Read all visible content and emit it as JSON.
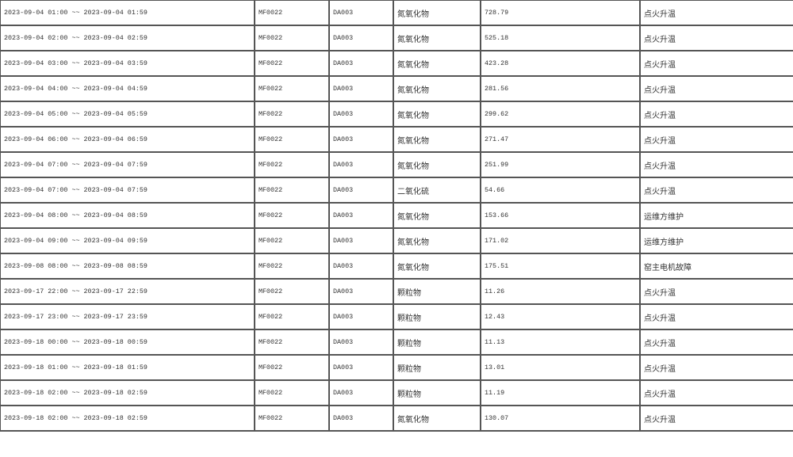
{
  "rows": [
    {
      "period": "2023-09-04 01:00 ~~ 2023-09-04 01:59",
      "company": "MF0022",
      "outlet": "DA003",
      "pollutant": "氮氧化物",
      "value": "728.79",
      "reason": "点火升温"
    },
    {
      "period": "2023-09-04 02:00 ~~ 2023-09-04 02:59",
      "company": "MF0022",
      "outlet": "DA003",
      "pollutant": "氮氧化物",
      "value": "525.18",
      "reason": "点火升温"
    },
    {
      "period": "2023-09-04 03:00 ~~ 2023-09-04 03:59",
      "company": "MF0022",
      "outlet": "DA003",
      "pollutant": "氮氧化物",
      "value": "423.28",
      "reason": "点火升温"
    },
    {
      "period": "2023-09-04 04:00 ~~ 2023-09-04 04:59",
      "company": "MF0022",
      "outlet": "DA003",
      "pollutant": "氮氧化物",
      "value": "281.56",
      "reason": "点火升温"
    },
    {
      "period": "2023-09-04 05:00 ~~ 2023-09-04 05:59",
      "company": "MF0022",
      "outlet": "DA003",
      "pollutant": "氮氧化物",
      "value": "299.62",
      "reason": "点火升温"
    },
    {
      "period": "2023-09-04 06:00 ~~ 2023-09-04 06:59",
      "company": "MF0022",
      "outlet": "DA003",
      "pollutant": "氮氧化物",
      "value": "271.47",
      "reason": "点火升温"
    },
    {
      "period": "2023-09-04 07:00 ~~ 2023-09-04 07:59",
      "company": "MF0022",
      "outlet": "DA003",
      "pollutant": "氮氧化物",
      "value": "251.99",
      "reason": "点火升温"
    },
    {
      "period": "2023-09-04 07:00 ~~ 2023-09-04 07:59",
      "company": "MF0022",
      "outlet": "DA003",
      "pollutant": "二氧化硫",
      "value": "54.66",
      "reason": "点火升温"
    },
    {
      "period": "2023-09-04 08:00 ~~ 2023-09-04 08:59",
      "company": "MF0022",
      "outlet": "DA003",
      "pollutant": "氮氧化物",
      "value": "153.66",
      "reason": "运维方维护"
    },
    {
      "period": "2023-09-04 09:00 ~~ 2023-09-04 09:59",
      "company": "MF0022",
      "outlet": "DA003",
      "pollutant": "氮氧化物",
      "value": "171.02",
      "reason": "运维方维护"
    },
    {
      "period": "2023-09-08 08:00 ~~ 2023-09-08 08:59",
      "company": "MF0022",
      "outlet": "DA003",
      "pollutant": "氮氧化物",
      "value": "175.51",
      "reason": "窑主电机故障"
    },
    {
      "period": "2023-09-17 22:00 ~~ 2023-09-17 22:59",
      "company": "MF0022",
      "outlet": "DA003",
      "pollutant": "颗粒物",
      "value": "11.26",
      "reason": "点火升温"
    },
    {
      "period": "2023-09-17 23:00 ~~ 2023-09-17 23:59",
      "company": "MF0022",
      "outlet": "DA003",
      "pollutant": "颗粒物",
      "value": "12.43",
      "reason": "点火升温"
    },
    {
      "period": "2023-09-18 00:00 ~~ 2023-09-18 00:59",
      "company": "MF0022",
      "outlet": "DA003",
      "pollutant": "颗粒物",
      "value": "11.13",
      "reason": "点火升温"
    },
    {
      "period": "2023-09-18 01:00 ~~ 2023-09-18 01:59",
      "company": "MF0022",
      "outlet": "DA003",
      "pollutant": "颗粒物",
      "value": "13.01",
      "reason": "点火升温"
    },
    {
      "period": "2023-09-18 02:00 ~~ 2023-09-18 02:59",
      "company": "MF0022",
      "outlet": "DA003",
      "pollutant": "颗粒物",
      "value": "11.19",
      "reason": "点火升温"
    },
    {
      "period": "2023-09-18 02:00 ~~ 2023-09-18 02:59",
      "company": "MF0022",
      "outlet": "DA003",
      "pollutant": "氮氧化物",
      "value": "130.07",
      "reason": "点火升温"
    }
  ]
}
